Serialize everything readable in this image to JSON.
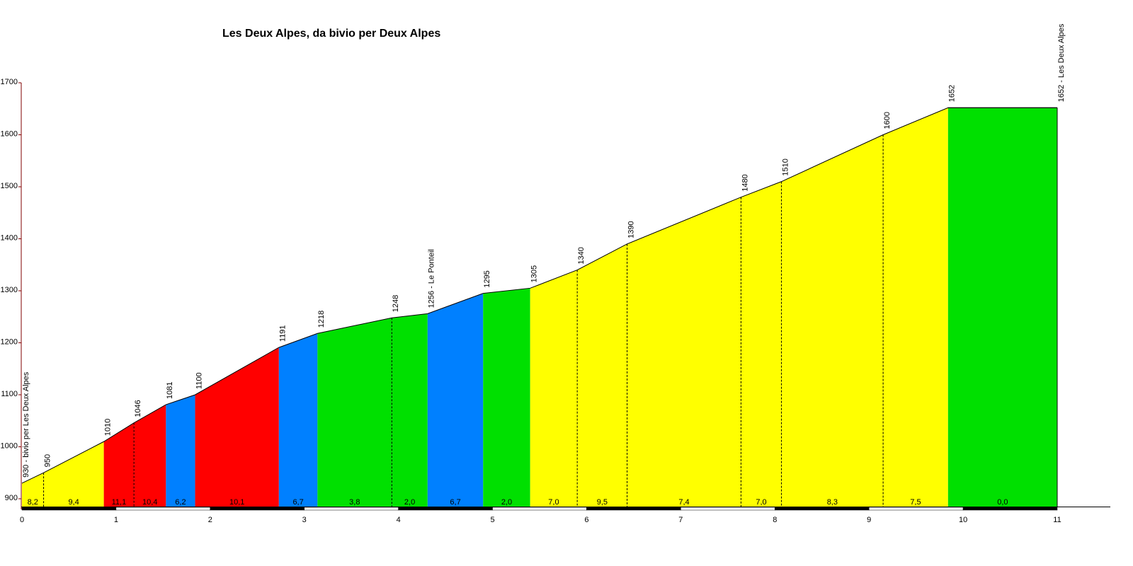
{
  "chart_data": {
    "type": "elevation-profile",
    "title": "Les Deux Alpes, da bivio per Deux Alpes",
    "x": [
      0,
      0.23,
      0.87,
      1.19,
      1.53,
      1.84,
      2.73,
      3.14,
      3.93,
      4.31,
      4.9,
      5.4,
      5.9,
      6.43,
      7.64,
      8.07,
      9.15,
      9.84,
      11.0
    ],
    "values": [
      930,
      950,
      1010,
      1046,
      1081,
      1100,
      1191,
      1218,
      1248,
      1256,
      1295,
      1305,
      1340,
      1390,
      1480,
      1510,
      1600,
      1652,
      1652
    ],
    "value_labels": [
      "930 - bivio per Les Deux Alpes",
      null,
      null,
      null,
      null,
      null,
      null,
      null,
      null,
      "1256 - Le Ponteil",
      null,
      null,
      null,
      null,
      null,
      null,
      null,
      null,
      "1652 - Les Deux Alpes"
    ],
    "segments": {
      "grades": [
        8.2,
        9.4,
        11.1,
        10.4,
        6.2,
        10.1,
        6.7,
        3.8,
        2.0,
        6.7,
        2.0,
        7.0,
        9.5,
        7.4,
        7.0,
        8.3,
        7.5,
        0.0
      ],
      "grade_labels": [
        "8,2",
        "9,4",
        "11,1",
        "10,4",
        "6,2",
        "10,1",
        "6,7",
        "3,8",
        "2,0",
        "6,7",
        "2,0",
        "7,0",
        "9,5",
        "7,4",
        "7,0",
        "8,3",
        "7,5",
        "0,0"
      ],
      "colors": [
        "#ffff00",
        "#ffff00",
        "#ff0000",
        "#ff0000",
        "#0080ff",
        "#ff0000",
        "#0080ff",
        "#00e000",
        "#00e000",
        "#0080ff",
        "#00e000",
        "#ffff00",
        "#ffff00",
        "#ffff00",
        "#ffff00",
        "#ffff00",
        "#ffff00",
        "#00e000"
      ]
    },
    "xlim": [
      0,
      11
    ],
    "xticks": [
      0,
      1,
      2,
      3,
      4,
      5,
      6,
      7,
      8,
      9,
      10,
      11
    ],
    "ylim": [
      885,
      1700
    ],
    "yticks": [
      900,
      1000,
      1100,
      1200,
      1300,
      1400,
      1500,
      1600,
      1700
    ]
  }
}
